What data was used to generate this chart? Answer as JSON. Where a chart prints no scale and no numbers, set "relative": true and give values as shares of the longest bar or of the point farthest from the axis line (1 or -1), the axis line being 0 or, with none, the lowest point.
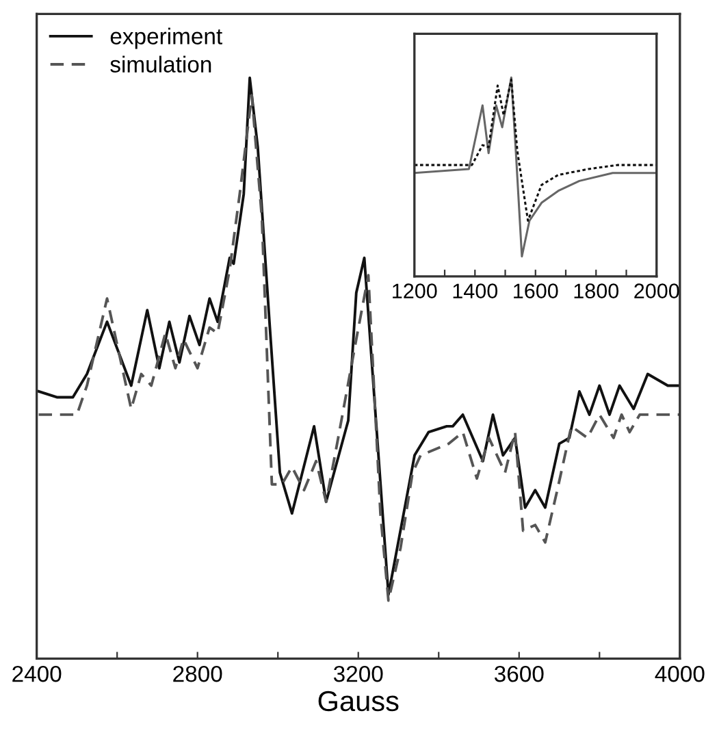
{
  "chart_data": [
    {
      "type": "line",
      "relative": true,
      "xlabel": "Gauss",
      "xlim": [
        2400,
        4000
      ],
      "xticks": [
        2400,
        {
          "value": 2600,
          "label": null
        },
        2800,
        {
          "value": 3000,
          "label": null
        },
        3200,
        {
          "value": 3400,
          "label": null
        },
        3600,
        {
          "value": 3800,
          "label": null
        },
        4000
      ],
      "tick_labels": "x",
      "legend": "top left",
      "grid": false,
      "marker": "none",
      "series": [
        {
          "name": "experiment",
          "color": "#111111",
          "line_style": "solid",
          "x": [
            2405,
            2450,
            2490,
            2525,
            2575,
            2635,
            2675,
            2705,
            2730,
            2755,
            2780,
            2805,
            2830,
            2850,
            2880,
            2890,
            2915,
            2930,
            2950,
            2980,
            3005,
            3035,
            3090,
            3120,
            3175,
            3195,
            3215,
            3275,
            3340,
            3375,
            3420,
            3435,
            3460,
            3510,
            3535,
            3560,
            3590,
            3615,
            3640,
            3665,
            3700,
            3725,
            3750,
            3775,
            3800,
            3825,
            3850,
            3885,
            3920,
            3970,
            4000
          ],
          "values": [
            0.46,
            0.45,
            0.45,
            0.49,
            0.58,
            0.47,
            0.6,
            0.5,
            0.58,
            0.51,
            0.59,
            0.54,
            0.62,
            0.58,
            0.69,
            0.68,
            0.8,
            1.0,
            0.88,
            0.57,
            0.32,
            0.25,
            0.4,
            0.27,
            0.41,
            0.63,
            0.69,
            0.11,
            0.35,
            0.39,
            0.4,
            0.4,
            0.42,
            0.34,
            0.42,
            0.35,
            0.38,
            0.26,
            0.29,
            0.26,
            0.37,
            0.38,
            0.46,
            0.42,
            0.47,
            0.42,
            0.47,
            0.43,
            0.49,
            0.47,
            0.47
          ]
        },
        {
          "name": "simulation",
          "color": "#555555",
          "line_style": "dashed",
          "x": [
            2405,
            2500,
            2525,
            2575,
            2635,
            2660,
            2685,
            2720,
            2745,
            2765,
            2800,
            2830,
            2850,
            2880,
            2905,
            2935,
            2960,
            2985,
            3010,
            3035,
            3065,
            3095,
            3120,
            3150,
            3195,
            3225,
            3255,
            3275,
            3305,
            3335,
            3355,
            3425,
            3460,
            3495,
            3525,
            3565,
            3590,
            3610,
            3640,
            3665,
            3695,
            3730,
            3770,
            3800,
            3835,
            3855,
            3875,
            3900,
            4000
          ],
          "values": [
            0.42,
            0.42,
            0.47,
            0.62,
            0.43,
            0.49,
            0.47,
            0.56,
            0.5,
            0.55,
            0.5,
            0.57,
            0.56,
            0.67,
            0.8,
            0.97,
            0.76,
            0.3,
            0.3,
            0.33,
            0.29,
            0.34,
            0.27,
            0.38,
            0.55,
            0.66,
            0.25,
            0.1,
            0.19,
            0.32,
            0.35,
            0.37,
            0.39,
            0.31,
            0.38,
            0.32,
            0.39,
            0.22,
            0.23,
            0.2,
            0.29,
            0.4,
            0.38,
            0.42,
            0.38,
            0.42,
            0.39,
            0.42,
            0.42
          ]
        }
      ]
    },
    {
      "type": "line",
      "relative": true,
      "xlim": [
        1200,
        2000
      ],
      "xticks": [
        1200,
        {
          "value": 1300,
          "label": null
        },
        1400,
        {
          "value": 1500,
          "label": null
        },
        1600,
        {
          "value": 1700,
          "label": null
        },
        1800,
        {
          "value": 1900,
          "label": null
        },
        2000
      ],
      "tick_labels": "x",
      "grid": false,
      "marker": "none",
      "series": [
        {
          "color": "#666666",
          "line_style": "solid",
          "x": [
            1200,
            1380,
            1425,
            1445,
            1470,
            1490,
            1520,
            1535,
            1555,
            1580,
            1620,
            1675,
            1745,
            1855,
            2000
          ],
          "values": [
            0.52,
            0.54,
            0.86,
            0.62,
            0.86,
            0.75,
            1.0,
            0.63,
            0.1,
            0.28,
            0.37,
            0.43,
            0.48,
            0.52,
            0.52
          ]
        },
        {
          "color": "#111111",
          "line_style": "dotted",
          "x": [
            1200,
            1390,
            1425,
            1445,
            1475,
            1495,
            1520,
            1540,
            1575,
            1620,
            1675,
            1775,
            1870,
            2000
          ],
          "values": [
            0.56,
            0.56,
            0.66,
            0.65,
            0.96,
            0.81,
            0.99,
            0.63,
            0.28,
            0.46,
            0.51,
            0.54,
            0.56,
            0.56
          ]
        }
      ]
    }
  ]
}
